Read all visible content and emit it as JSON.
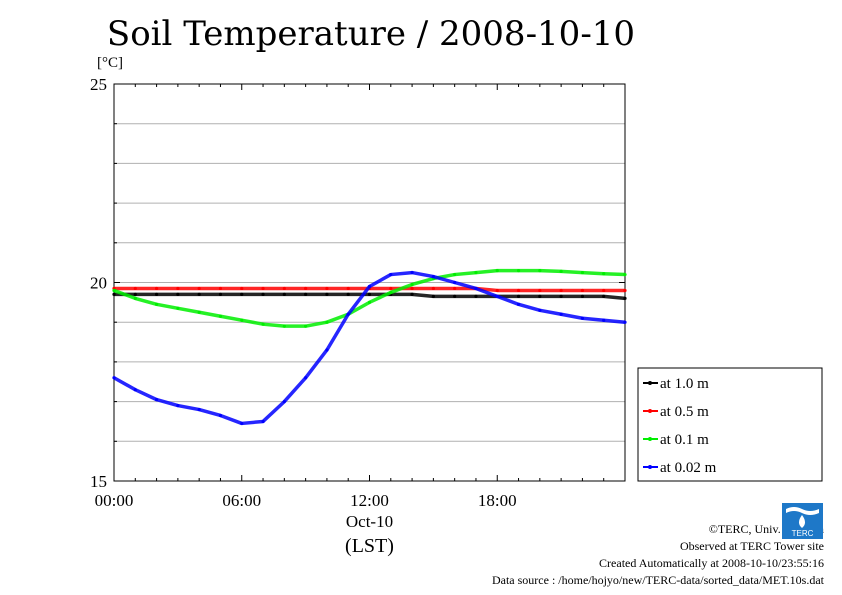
{
  "chart_data": {
    "type": "line",
    "title": "Soil Temperature / 2008-10-10",
    "ylabel": "[°C]",
    "xlabel": "(LST)",
    "x_date_label": "Oct-10",
    "ylim": [
      15,
      25
    ],
    "yticks": [
      "15",
      "20",
      "25"
    ],
    "xlim": [
      0,
      24
    ],
    "xticks": [
      "00:00",
      "06:00",
      "12:00",
      "18:00"
    ],
    "grid": "horizontal",
    "legend_position": "right",
    "x_hours": [
      0,
      1,
      2,
      3,
      4,
      5,
      6,
      7,
      8,
      9,
      10,
      11,
      12,
      13,
      14,
      15,
      16,
      17,
      18,
      19,
      20,
      21,
      22,
      23,
      24
    ],
    "series": [
      {
        "name": "at 1.0 m",
        "color": "#000000",
        "values": [
          19.7,
          19.7,
          19.7,
          19.7,
          19.7,
          19.7,
          19.7,
          19.7,
          19.7,
          19.7,
          19.7,
          19.7,
          19.7,
          19.7,
          19.7,
          19.65,
          19.65,
          19.65,
          19.65,
          19.65,
          19.65,
          19.65,
          19.65,
          19.65,
          19.6
        ]
      },
      {
        "name": "at 0.5 m",
        "color": "#ff0000",
        "values": [
          19.85,
          19.85,
          19.85,
          19.85,
          19.85,
          19.85,
          19.85,
          19.85,
          19.85,
          19.85,
          19.85,
          19.85,
          19.85,
          19.85,
          19.85,
          19.85,
          19.85,
          19.85,
          19.8,
          19.8,
          19.8,
          19.8,
          19.8,
          19.8,
          19.8
        ]
      },
      {
        "name": "at 0.1 m",
        "color": "#00ee00",
        "values": [
          19.8,
          19.6,
          19.45,
          19.35,
          19.25,
          19.15,
          19.05,
          18.95,
          18.9,
          18.9,
          19.0,
          19.2,
          19.5,
          19.75,
          19.95,
          20.1,
          20.2,
          20.25,
          20.3,
          20.3,
          20.3,
          20.28,
          20.25,
          20.22,
          20.2
        ]
      },
      {
        "name": "at 0.02 m",
        "color": "#0000ff",
        "values": [
          17.6,
          17.3,
          17.05,
          16.9,
          16.8,
          16.65,
          16.45,
          16.5,
          17.0,
          17.6,
          18.3,
          19.2,
          19.9,
          20.2,
          20.25,
          20.15,
          20.0,
          19.85,
          19.65,
          19.45,
          19.3,
          19.2,
          19.1,
          19.05,
          19.0
        ]
      }
    ]
  },
  "footer": {
    "copyright": "©TERC, Univ. Tsukuba",
    "observed": "Observed at TERC Tower site",
    "created": "Created Automatically at 2008-10-10/23:55:16",
    "source": "Data source : /home/hojyo/new/TERC-data/sorted_data/MET.10s.dat"
  },
  "logo_text": "TERC",
  "colors": {
    "frame": "#000000",
    "grid": "#b0b0b0"
  }
}
